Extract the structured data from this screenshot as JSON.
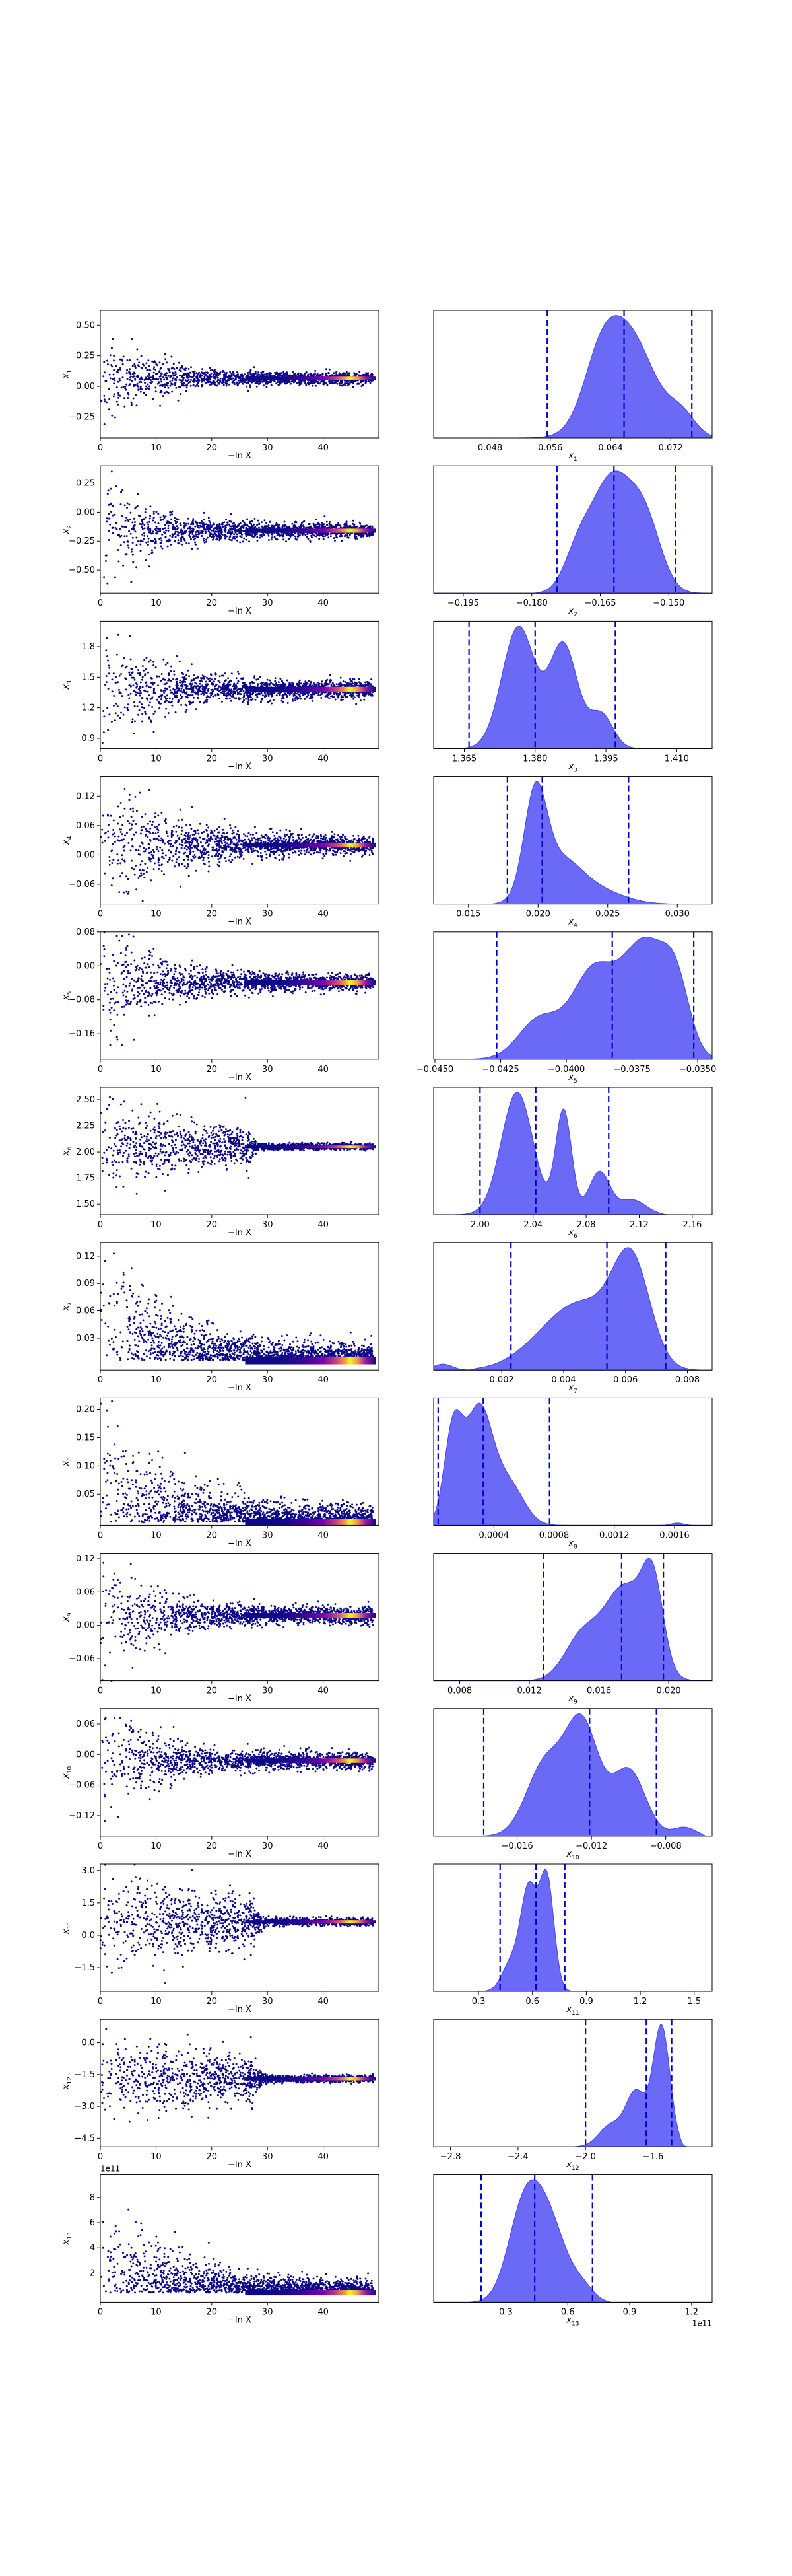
{
  "chart_data": [
    {
      "type": "scatter",
      "row": 1,
      "xlabel": "−ln X",
      "ylabel": "x",
      "ylabel_sub": "1",
      "xticks": [
        "0",
        "10",
        "20",
        "30",
        "40"
      ],
      "yticks": [
        {
          "v": 0.5,
          "t": "0.50"
        },
        {
          "v": 0.25,
          "t": "0.25"
        },
        {
          "v": 0.0,
          "t": "0.00"
        },
        {
          "v": -0.25,
          "t": "−0.25"
        }
      ],
      "ylim": [
        -0.42,
        0.62
      ],
      "converge": 0.066,
      "spread": 0.2,
      "cutoff": 7
    },
    {
      "type": "area",
      "row": 1,
      "xlabel": "x",
      "xlabel_sub": "1",
      "xticks": [
        {
          "v": 0.048,
          "t": "0.048"
        },
        {
          "v": 0.056,
          "t": "0.056"
        },
        {
          "v": 0.064,
          "t": "0.064"
        },
        {
          "v": 0.072,
          "t": "0.072"
        }
      ],
      "xlim": [
        0.0405,
        0.0775
      ],
      "quantiles": [
        0.0556,
        0.0658,
        0.0748
      ],
      "peaks": [
        [
          0.0661,
          0.0036,
          1.0
        ],
        [
          0.0625,
          0.0022,
          0.35
        ],
        [
          0.0735,
          0.0018,
          0.18
        ]
      ],
      "tail_left": 0.052,
      "tail_right": 0.0775
    },
    {
      "type": "scatter",
      "row": 2,
      "xlabel": "−ln X",
      "ylabel": "x",
      "ylabel_sub": "2",
      "xticks": [
        "0",
        "10",
        "20",
        "30",
        "40"
      ],
      "yticks": [
        {
          "v": 0.25,
          "t": "0.25"
        },
        {
          "v": 0.0,
          "t": "0.00"
        },
        {
          "v": -0.25,
          "t": "−0.25"
        },
        {
          "v": -0.5,
          "t": "−0.50"
        }
      ],
      "ylim": [
        -0.7,
        0.4
      ],
      "converge": -0.16,
      "spread": 0.25,
      "cutoff": 8
    },
    {
      "type": "area",
      "row": 2,
      "xlabel": "x",
      "xlabel_sub": "2",
      "xticks": [
        {
          "v": -0.195,
          "t": "−0.195"
        },
        {
          "v": -0.18,
          "t": "−0.180"
        },
        {
          "v": -0.165,
          "t": "−0.165"
        },
        {
          "v": -0.15,
          "t": "−0.150"
        }
      ],
      "xlim": [
        -0.2015,
        -0.1405
      ],
      "quantiles": [
        -0.1745,
        -0.162,
        -0.1485
      ],
      "peaks": [
        [
          -0.1625,
          0.0045,
          1.0
        ],
        [
          -0.155,
          0.0035,
          0.55
        ],
        [
          -0.17,
          0.003,
          0.3
        ]
      ],
      "tail_left": -0.178,
      "tail_right": -0.142
    },
    {
      "type": "scatter",
      "row": 3,
      "xlabel": "−ln X",
      "ylabel": "x",
      "ylabel_sub": "3",
      "xticks": [
        "0",
        "10",
        "20",
        "30",
        "40"
      ],
      "yticks": [
        {
          "v": 1.8,
          "t": "1.8"
        },
        {
          "v": 1.5,
          "t": "1.5"
        },
        {
          "v": 1.2,
          "t": "1.2"
        },
        {
          "v": 0.9,
          "t": "0.9"
        }
      ],
      "ylim": [
        0.8,
        2.05
      ],
      "converge": 1.382,
      "spread": 0.35,
      "cutoff": 8
    },
    {
      "type": "area",
      "row": 3,
      "xlabel": "x",
      "xlabel_sub": "3",
      "xticks": [
        {
          "v": 1.365,
          "t": "1.365"
        },
        {
          "v": 1.38,
          "t": "1.380"
        },
        {
          "v": 1.395,
          "t": "1.395"
        },
        {
          "v": 1.41,
          "t": "1.410"
        }
      ],
      "xlim": [
        1.3585,
        1.4175
      ],
      "quantiles": [
        1.366,
        1.38,
        1.397
      ],
      "peaks": [
        [
          1.3765,
          0.0035,
          1.0
        ],
        [
          1.386,
          0.003,
          0.85
        ],
        [
          1.394,
          0.0025,
          0.28
        ]
      ],
      "tail_left": 1.363,
      "tail_right": 1.404
    },
    {
      "type": "scatter",
      "row": 4,
      "xlabel": "−ln X",
      "ylabel": "x",
      "ylabel_sub": "4",
      "xticks": [
        "0",
        "10",
        "20",
        "30",
        "40"
      ],
      "yticks": [
        {
          "v": 0.12,
          "t": "0.12"
        },
        {
          "v": 0.06,
          "t": "0.06"
        },
        {
          "v": 0.0,
          "t": "0.00"
        },
        {
          "v": -0.06,
          "t": "−0.06"
        }
      ],
      "ylim": [
        -0.1,
        0.16
      ],
      "converge": 0.02,
      "spread": 0.07,
      "cutoff": 10
    },
    {
      "type": "area",
      "row": 4,
      "xlabel": "x",
      "xlabel_sub": "4",
      "xticks": [
        {
          "v": 0.015,
          "t": "0.015"
        },
        {
          "v": 0.02,
          "t": "0.020"
        },
        {
          "v": 0.025,
          "t": "0.025"
        },
        {
          "v": 0.03,
          "t": "0.030"
        }
      ],
      "xlim": [
        0.0125,
        0.0325
      ],
      "quantiles": [
        0.0178,
        0.0203,
        0.0265
      ],
      "peaks": [
        [
          0.0198,
          0.0008,
          1.0
        ],
        [
          0.0215,
          0.0016,
          0.45
        ],
        [
          0.0245,
          0.0018,
          0.12
        ]
      ],
      "tail_left": 0.0172,
      "tail_right": 0.029
    },
    {
      "type": "scatter",
      "row": 5,
      "xlabel": "−ln X",
      "ylabel": "x",
      "ylabel_sub": "5",
      "xticks": [
        "0",
        "10",
        "20",
        "30",
        "40"
      ],
      "yticks": [
        {
          "v": 0.08,
          "t": "0.08"
        },
        {
          "v": 0.0,
          "t": "0.00"
        },
        {
          "v": -0.08,
          "t": "−0.08"
        },
        {
          "v": -0.16,
          "t": "−0.16"
        }
      ],
      "ylim": [
        -0.22,
        0.08
      ],
      "converge": -0.039,
      "spread": 0.08,
      "cutoff": 8
    },
    {
      "type": "area",
      "row": 5,
      "xlabel": "x",
      "xlabel_sub": "5",
      "xticks": [
        {
          "v": -0.045,
          "t": "−0.0450"
        },
        {
          "v": -0.0425,
          "t": "−0.0425"
        },
        {
          "v": -0.04,
          "t": "−0.0400"
        },
        {
          "v": -0.0375,
          "t": "−0.0375"
        },
        {
          "v": -0.035,
          "t": "−0.0350"
        }
      ],
      "xlim": [
        -0.04505,
        -0.03445
      ],
      "quantiles": [
        -0.04265,
        -0.03825,
        -0.03515
      ],
      "peaks": [
        [
          -0.037,
          0.0009,
          1.0
        ],
        [
          -0.039,
          0.0008,
          0.72
        ],
        [
          -0.041,
          0.0008,
          0.35
        ],
        [
          -0.0358,
          0.0005,
          0.45
        ]
      ],
      "tail_left": -0.0437,
      "tail_right": -0.0345
    },
    {
      "type": "scatter",
      "row": 6,
      "xlabel": "−ln X",
      "ylabel": "x",
      "ylabel_sub": "6",
      "xticks": [
        "0",
        "10",
        "20",
        "30",
        "40"
      ],
      "yticks": [
        {
          "v": 2.5,
          "t": "2.50"
        },
        {
          "v": 2.25,
          "t": "2.25"
        },
        {
          "v": 2.0,
          "t": "2.00"
        },
        {
          "v": 1.75,
          "t": "1.75"
        },
        {
          "v": 1.5,
          "t": "1.50"
        }
      ],
      "ylim": [
        1.4,
        2.62
      ],
      "converge": 2.05,
      "spread": 0.18,
      "cutoff": 26
    },
    {
      "type": "area",
      "row": 6,
      "xlabel": "x",
      "xlabel_sub": "6",
      "xticks": [
        {
          "v": 2.0,
          "t": "2.00"
        },
        {
          "v": 2.04,
          "t": "2.04"
        },
        {
          "v": 2.08,
          "t": "2.08"
        },
        {
          "v": 2.12,
          "t": "2.12"
        },
        {
          "v": 2.16,
          "t": "2.16"
        }
      ],
      "xlim": [
        1.965,
        2.175
      ],
      "quantiles": [
        2.0,
        2.042,
        2.097
      ],
      "peaks": [
        [
          2.028,
          0.012,
          1.0
        ],
        [
          2.063,
          0.006,
          0.85
        ],
        [
          2.09,
          0.008,
          0.35
        ],
        [
          2.115,
          0.01,
          0.12
        ]
      ],
      "tail_left": 1.985,
      "tail_right": 2.135
    },
    {
      "type": "scatter",
      "row": 7,
      "xlabel": "−ln X",
      "ylabel": "x",
      "ylabel_sub": "7",
      "xticks": [
        "0",
        "10",
        "20",
        "30",
        "40"
      ],
      "yticks": [
        {
          "v": 0.12,
          "t": "0.12"
        },
        {
          "v": 0.09,
          "t": "0.09"
        },
        {
          "v": 0.06,
          "t": "0.06"
        },
        {
          "v": 0.03,
          "t": "0.03"
        }
      ],
      "ylim": [
        -0.005,
        0.135
      ],
      "converge": 0.0055,
      "spread": 0.06,
      "cutoff": 10,
      "positive": true
    },
    {
      "type": "area",
      "row": 7,
      "xlabel": "x",
      "xlabel_sub": "7",
      "xticks": [
        {
          "v": 0.002,
          "t": "0.002"
        },
        {
          "v": 0.004,
          "t": "0.004"
        },
        {
          "v": 0.006,
          "t": "0.006"
        },
        {
          "v": 0.008,
          "t": "0.008"
        }
      ],
      "xlim": [
        -0.0002,
        0.0088
      ],
      "quantiles": [
        0.0023,
        0.0054,
        0.0073
      ],
      "peaks": [
        [
          0.0062,
          0.0006,
          1.0
        ],
        [
          0.0048,
          0.001,
          0.55
        ],
        [
          0.0035,
          0.001,
          0.25
        ]
      ],
      "tail_left": 0.0012,
      "tail_right": 0.0082,
      "blip": [
        0.0001,
        0.0003,
        0.06
      ]
    },
    {
      "type": "scatter",
      "row": 8,
      "xlabel": "−ln X",
      "ylabel": "x",
      "ylabel_sub": "8",
      "xticks": [
        "0",
        "10",
        "20",
        "30",
        "40"
      ],
      "yticks": [
        {
          "v": 0.2,
          "t": "0.20"
        },
        {
          "v": 0.15,
          "t": "0.15"
        },
        {
          "v": 0.1,
          "t": "0.10"
        },
        {
          "v": 0.05,
          "t": "0.05"
        }
      ],
      "ylim": [
        -0.005,
        0.22
      ],
      "converge": 0.0004,
      "spread": 0.08,
      "cutoff": 12,
      "positive": true
    },
    {
      "type": "area",
      "row": 8,
      "xlabel": "x",
      "xlabel_sub": "8",
      "xticks": [
        {
          "v": 0.0004,
          "t": "0.0004"
        },
        {
          "v": 0.0008,
          "t": "0.0008"
        },
        {
          "v": 0.0012,
          "t": "0.0012"
        },
        {
          "v": 0.0016,
          "t": "0.0016"
        }
      ],
      "xlim": [
        0.0,
        0.00185
      ],
      "quantiles": [
        3e-05,
        0.00033,
        0.00077
      ],
      "peaks": [
        [
          0.0003,
          9e-05,
          1.0
        ],
        [
          0.00013,
          6e-05,
          0.8
        ],
        [
          0.0005,
          0.0001,
          0.35
        ]
      ],
      "tail_left": 0.0,
      "tail_right": 0.00085,
      "blip": [
        0.00162,
        4e-05,
        0.02
      ]
    },
    {
      "type": "scatter",
      "row": 9,
      "xlabel": "−ln X",
      "ylabel": "x",
      "ylabel_sub": "9",
      "xticks": [
        "0",
        "10",
        "20",
        "30",
        "40"
      ],
      "yticks": [
        {
          "v": 0.12,
          "t": "0.12"
        },
        {
          "v": 0.06,
          "t": "0.06"
        },
        {
          "v": 0.0,
          "t": "0.00"
        },
        {
          "v": -0.06,
          "t": "−0.06"
        }
      ],
      "ylim": [
        -0.1,
        0.13
      ],
      "converge": 0.018,
      "spread": 0.06,
      "cutoff": 8
    },
    {
      "type": "area",
      "row": 9,
      "xlabel": "x",
      "xlabel_sub": "9",
      "xticks": [
        {
          "v": 0.008,
          "t": "0.008"
        },
        {
          "v": 0.012,
          "t": "0.012"
        },
        {
          "v": 0.016,
          "t": "0.016"
        },
        {
          "v": 0.02,
          "t": "0.020"
        }
      ],
      "xlim": [
        0.0065,
        0.0225
      ],
      "quantiles": [
        0.0128,
        0.0173,
        0.0197
      ],
      "peaks": [
        [
          0.0175,
          0.0012,
          1.0
        ],
        [
          0.0191,
          0.0006,
          0.85
        ],
        [
          0.015,
          0.001,
          0.45
        ]
      ],
      "tail_left": 0.0115,
      "tail_right": 0.0222
    },
    {
      "type": "scatter",
      "row": 10,
      "xlabel": "−ln X",
      "ylabel": "x",
      "ylabel_sub": "10",
      "xticks": [
        "0",
        "10",
        "20",
        "30",
        "40"
      ],
      "yticks": [
        {
          "v": 0.06,
          "t": "0.06"
        },
        {
          "v": 0.0,
          "t": "0.00"
        },
        {
          "v": -0.06,
          "t": "−0.06"
        },
        {
          "v": -0.12,
          "t": "−0.12"
        }
      ],
      "ylim": [
        -0.16,
        0.09
      ],
      "converge": -0.012,
      "spread": 0.06,
      "cutoff": 8
    },
    {
      "type": "area",
      "row": 10,
      "xlabel": "x",
      "xlabel_sub": "10",
      "xticks": [
        {
          "v": -0.016,
          "t": "−0.016"
        },
        {
          "v": -0.012,
          "t": "−0.012"
        },
        {
          "v": -0.008,
          "t": "−0.008"
        }
      ],
      "xlim": [
        -0.0205,
        -0.0055
      ],
      "quantiles": [
        -0.0178,
        -0.0121,
        -0.0085
      ],
      "peaks": [
        [
          -0.0125,
          0.0009,
          1.0
        ],
        [
          -0.0145,
          0.001,
          0.65
        ],
        [
          -0.01,
          0.0009,
          0.6
        ],
        [
          -0.007,
          0.0006,
          0.08
        ]
      ],
      "tail_left": -0.0188,
      "tail_right": -0.0062
    },
    {
      "type": "scatter",
      "row": 11,
      "xlabel": "−ln X",
      "ylabel": "x",
      "ylabel_sub": "11",
      "xticks": [
        "0",
        "10",
        "20",
        "30",
        "40"
      ],
      "yticks": [
        {
          "v": 3.0,
          "t": "3.0"
        },
        {
          "v": 1.5,
          "t": "1.5"
        },
        {
          "v": 0.0,
          "t": "0.0"
        },
        {
          "v": -1.5,
          "t": "−1.5"
        }
      ],
      "ylim": [
        -2.6,
        3.3
      ],
      "converge": 0.62,
      "spread": 1.1,
      "cutoff": 27
    },
    {
      "type": "area",
      "row": 11,
      "xlabel": "x",
      "xlabel_sub": "11",
      "xticks": [
        {
          "v": 0.3,
          "t": "0.3"
        },
        {
          "v": 0.6,
          "t": "0.6"
        },
        {
          "v": 0.9,
          "t": "0.9"
        },
        {
          "v": 1.2,
          "t": "1.2"
        },
        {
          "v": 1.5,
          "t": "1.5"
        }
      ],
      "xlim": [
        0.05,
        1.6
      ],
      "quantiles": [
        0.42,
        0.62,
        0.78
      ],
      "peaks": [
        [
          0.58,
          0.045,
          0.9
        ],
        [
          0.68,
          0.04,
          1.0
        ],
        [
          0.48,
          0.05,
          0.25
        ]
      ],
      "tail_left": 0.35,
      "tail_right": 0.95
    },
    {
      "type": "scatter",
      "row": 12,
      "xlabel": "−ln X",
      "ylabel": "x",
      "ylabel_sub": "12",
      "xticks": [
        "0",
        "10",
        "20",
        "30",
        "40"
      ],
      "yticks": [
        {
          "v": 0.0,
          "t": "0.0"
        },
        {
          "v": -1.5,
          "t": "−1.5"
        },
        {
          "v": -3.0,
          "t": "−3.0"
        },
        {
          "v": -4.5,
          "t": "−4.5"
        }
      ],
      "ylim": [
        -4.9,
        1.1
      ],
      "converge": -1.7,
      "spread": 1.0,
      "cutoff": 27
    },
    {
      "type": "area",
      "row": 12,
      "xlabel": "x",
      "xlabel_sub": "12",
      "xticks": [
        {
          "v": -2.8,
          "t": "−2.8"
        },
        {
          "v": -2.4,
          "t": "−2.4"
        },
        {
          "v": -2.0,
          "t": "−2.0"
        },
        {
          "v": -1.6,
          "t": "−1.6"
        }
      ],
      "xlim": [
        -2.9,
        -1.25
      ],
      "quantiles": [
        -2.0,
        -1.64,
        -1.49
      ],
      "peaks": [
        [
          -1.55,
          0.05,
          1.0
        ],
        [
          -1.7,
          0.06,
          0.45
        ],
        [
          -1.85,
          0.07,
          0.18
        ]
      ],
      "tail_left": -2.05,
      "tail_right": -1.45
    },
    {
      "type": "scatter",
      "row": 13,
      "xlabel": "−ln X",
      "ylabel": "x",
      "ylabel_sub": "13",
      "offset_label": "1e11",
      "xticks": [
        "0",
        "10",
        "20",
        "30",
        "40"
      ],
      "yticks": [
        {
          "v": 8,
          "t": "8"
        },
        {
          "v": 6,
          "t": "6"
        },
        {
          "v": 4,
          "t": "4"
        },
        {
          "v": 2,
          "t": "2"
        }
      ],
      "ylim": [
        -0.3,
        9.8
      ],
      "converge": 0.45,
      "spread": 3.0,
      "cutoff": 12,
      "positive": true
    },
    {
      "type": "area",
      "row": 13,
      "xlabel": "x",
      "xlabel_sub": "13",
      "offset_label": "1e11",
      "xticks": [
        {
          "v": 0.3,
          "t": "0.3"
        },
        {
          "v": 0.6,
          "t": "0.6"
        },
        {
          "v": 0.9,
          "t": "0.9"
        },
        {
          "v": 1.2,
          "t": "1.2"
        }
      ],
      "xlim": [
        -0.05,
        1.3
      ],
      "quantiles": [
        0.18,
        0.44,
        0.72
      ],
      "peaks": [
        [
          0.44,
          0.085,
          1.0
        ],
        [
          0.36,
          0.07,
          0.45
        ],
        [
          0.55,
          0.08,
          0.45
        ],
        [
          0.68,
          0.05,
          0.12
        ]
      ],
      "tail_left": 0.15,
      "tail_right": 0.78
    }
  ]
}
